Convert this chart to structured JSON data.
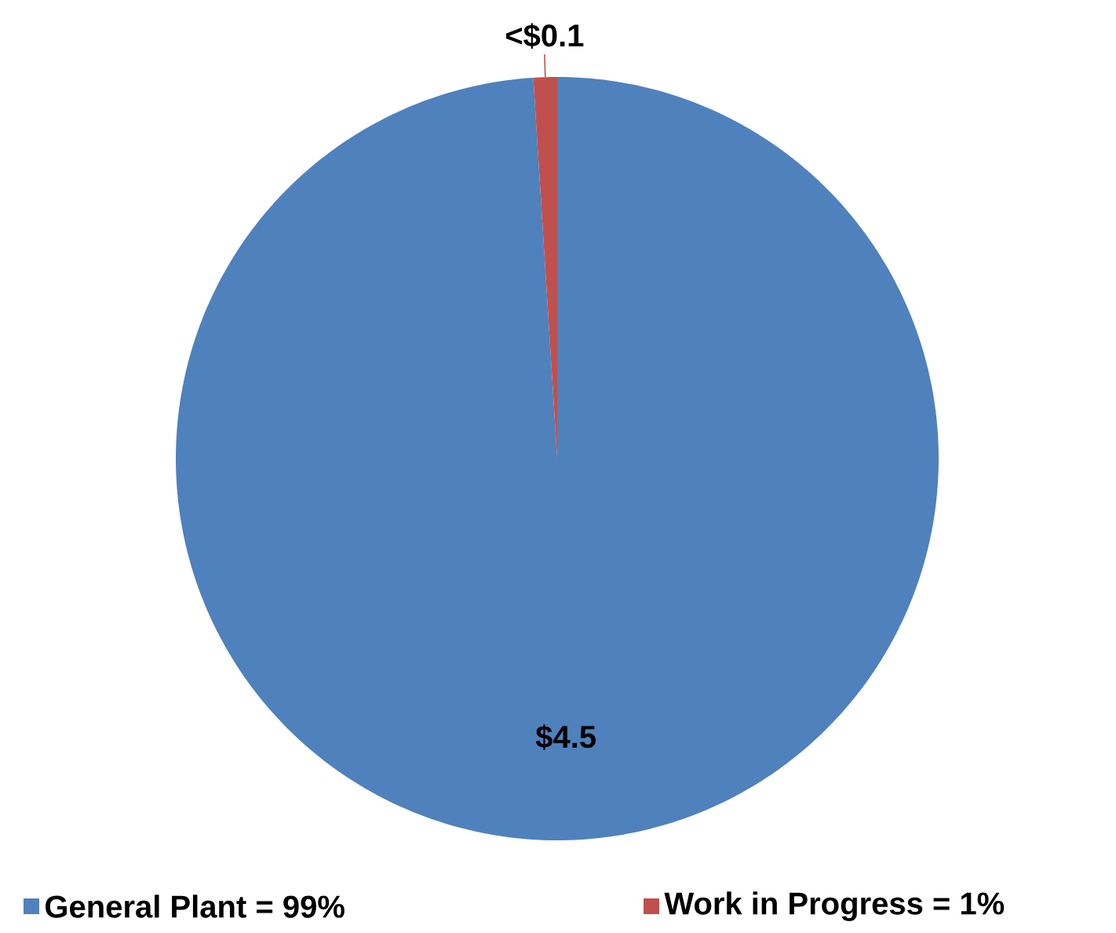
{
  "chart_data": {
    "type": "pie",
    "categories": [
      "General Plant = 99%",
      "Work in Progress = 1%"
    ],
    "values": [
      99,
      1
    ],
    "colors": [
      "#4f81bd",
      "#c0504d"
    ],
    "annotations": [
      "$4.5",
      "<$0.1"
    ],
    "legend": "bottom"
  }
}
